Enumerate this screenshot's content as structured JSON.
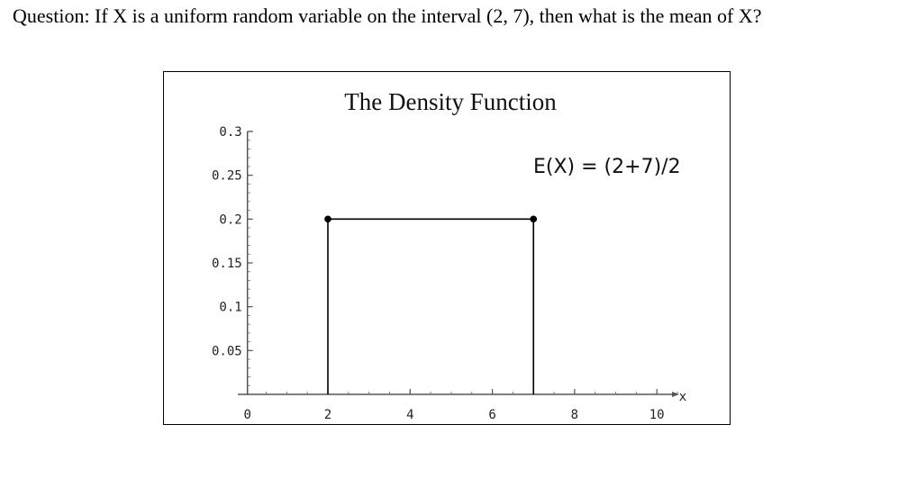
{
  "question": "Question: If X is a uniform random variable on the interval (2, 7), then what is the mean of X?",
  "chart_data": {
    "type": "line",
    "title": "The Density Function",
    "xlabel": "x",
    "ylabel": "",
    "xlim": [
      -0.3,
      10.5
    ],
    "ylim": [
      0,
      0.3
    ],
    "x_ticks": [
      0,
      2,
      4,
      6,
      8,
      10
    ],
    "x_tick_labels": [
      "0",
      "2",
      "4",
      "6",
      "8",
      "10"
    ],
    "y_ticks": [
      0.05,
      0.1,
      0.15,
      0.2,
      0.25,
      0.3
    ],
    "y_tick_labels": [
      "0.05",
      "0.1",
      "0.15",
      "0.2",
      "0.25",
      "0.3"
    ],
    "grid": false,
    "series": [
      {
        "x": [
          2,
          2,
          7,
          7
        ],
        "y": [
          0,
          0.2,
          0.2,
          0
        ]
      }
    ],
    "points": [
      {
        "x": 2,
        "y": 0.2
      },
      {
        "x": 7,
        "y": 0.2
      }
    ],
    "annotation": "E(X) = (2+7)/2",
    "line_color": "#000000"
  }
}
